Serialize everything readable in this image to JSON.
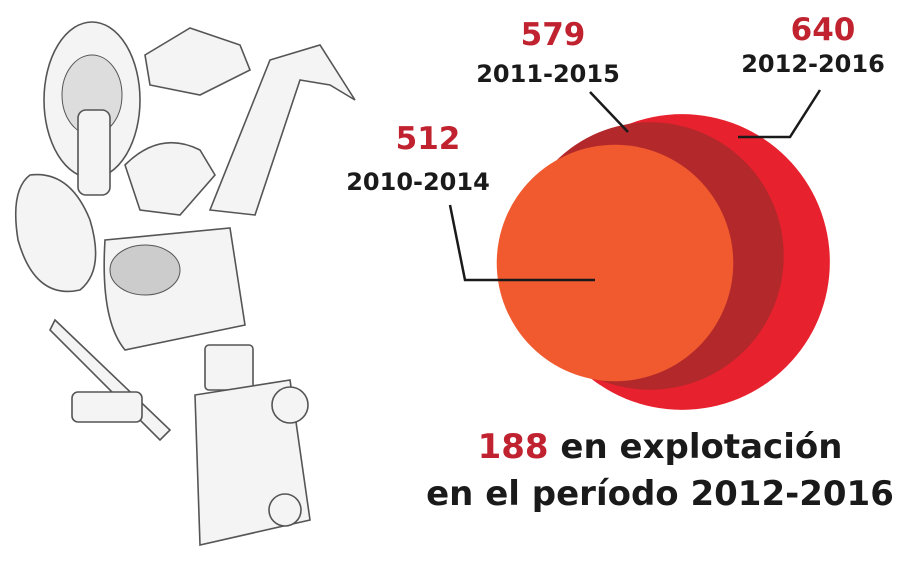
{
  "chart_data": {
    "type": "bubble",
    "categories": [
      "2010-2014",
      "2011-2015",
      "2012-2016"
    ],
    "values": [
      512,
      579,
      640
    ],
    "colors": [
      "#f05a2e",
      "#b3282a",
      "#e8212e"
    ],
    "value_color": "#c0232f",
    "annotation": {
      "value": 188,
      "text": "en explotación",
      "subtext": "en el período 2012-2016"
    }
  }
}
